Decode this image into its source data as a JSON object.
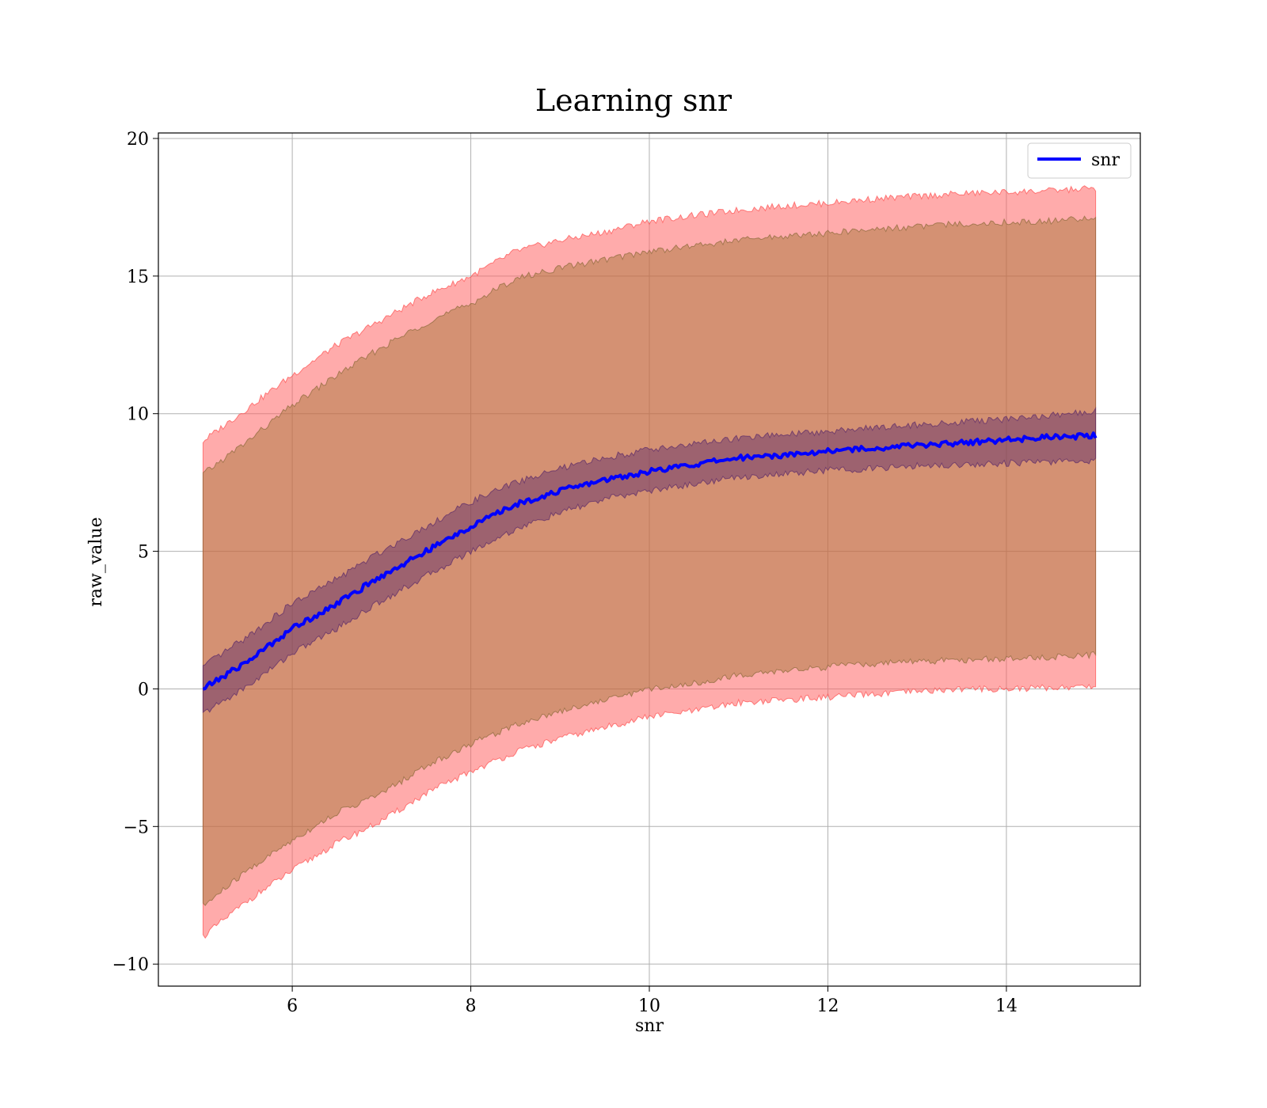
{
  "chart_data": {
    "type": "line",
    "title": "Learning snr",
    "xlabel": "snr",
    "ylabel": "raw_value",
    "xlim": [
      4.5,
      15.5
    ],
    "ylim": [
      -10.8,
      20.2
    ],
    "xticks": [
      6,
      8,
      10,
      12,
      14
    ],
    "xtick_labels": [
      "6",
      "8",
      "10",
      "12",
      "14"
    ],
    "yticks": [
      -10,
      -5,
      0,
      5,
      10,
      15,
      20
    ],
    "ytick_labels": [
      "−10",
      "−5",
      "0",
      "5",
      "10",
      "15",
      "20"
    ],
    "grid": true,
    "legend": {
      "position": "top-right",
      "entries": [
        "snr"
      ]
    },
    "x": [
      5.0,
      5.5,
      6.0,
      6.5,
      7.0,
      7.5,
      8.0,
      8.5,
      9.0,
      9.5,
      10.0,
      10.5,
      11.0,
      11.5,
      12.0,
      12.5,
      13.0,
      13.5,
      14.0,
      14.5,
      15.0
    ],
    "series": [
      {
        "name": "snr",
        "role": "line",
        "color": "#0000ff",
        "values": [
          0.0,
          1.0,
          2.2,
          3.1,
          4.1,
          5.0,
          5.9,
          6.7,
          7.2,
          7.6,
          7.9,
          8.15,
          8.4,
          8.5,
          8.65,
          8.75,
          8.85,
          8.95,
          9.05,
          9.15,
          9.2
        ]
      },
      {
        "name": "",
        "role": "inner-band",
        "color": "#6b2a6b",
        "lower": [
          -0.9,
          0.1,
          1.3,
          2.2,
          3.2,
          4.1,
          5.0,
          5.8,
          6.4,
          6.9,
          7.2,
          7.45,
          7.7,
          7.8,
          7.95,
          8.0,
          8.1,
          8.15,
          8.2,
          8.25,
          8.3
        ],
        "upper": [
          0.8,
          1.9,
          3.1,
          4.0,
          5.0,
          5.9,
          6.8,
          7.5,
          8.0,
          8.4,
          8.7,
          8.9,
          9.1,
          9.25,
          9.35,
          9.5,
          9.6,
          9.7,
          9.8,
          9.95,
          10.1
        ]
      },
      {
        "name": "",
        "role": "middle-band",
        "color": "#a0702f",
        "lower": [
          -7.9,
          -6.6,
          -5.5,
          -4.5,
          -3.8,
          -2.8,
          -2.0,
          -1.3,
          -0.8,
          -0.4,
          0.0,
          0.2,
          0.5,
          0.65,
          0.8,
          0.9,
          1.0,
          1.05,
          1.1,
          1.15,
          1.25
        ],
        "upper": [
          7.8,
          9.0,
          10.3,
          11.4,
          12.4,
          13.3,
          14.0,
          14.9,
          15.3,
          15.6,
          15.9,
          16.1,
          16.3,
          16.45,
          16.55,
          16.7,
          16.8,
          16.9,
          16.95,
          17.0,
          17.1
        ]
      },
      {
        "name": "",
        "role": "outer-band",
        "color": "#ff6666",
        "lower": [
          -9.0,
          -7.7,
          -6.6,
          -5.6,
          -4.8,
          -3.8,
          -3.0,
          -2.3,
          -1.8,
          -1.4,
          -1.0,
          -0.8,
          -0.5,
          -0.4,
          -0.3,
          -0.2,
          -0.1,
          0.0,
          0.0,
          0.05,
          0.1
        ],
        "upper": [
          9.0,
          10.2,
          11.4,
          12.5,
          13.4,
          14.3,
          15.0,
          15.9,
          16.3,
          16.6,
          17.0,
          17.2,
          17.4,
          17.55,
          17.65,
          17.8,
          17.9,
          18.0,
          18.05,
          18.1,
          18.2
        ]
      }
    ]
  }
}
